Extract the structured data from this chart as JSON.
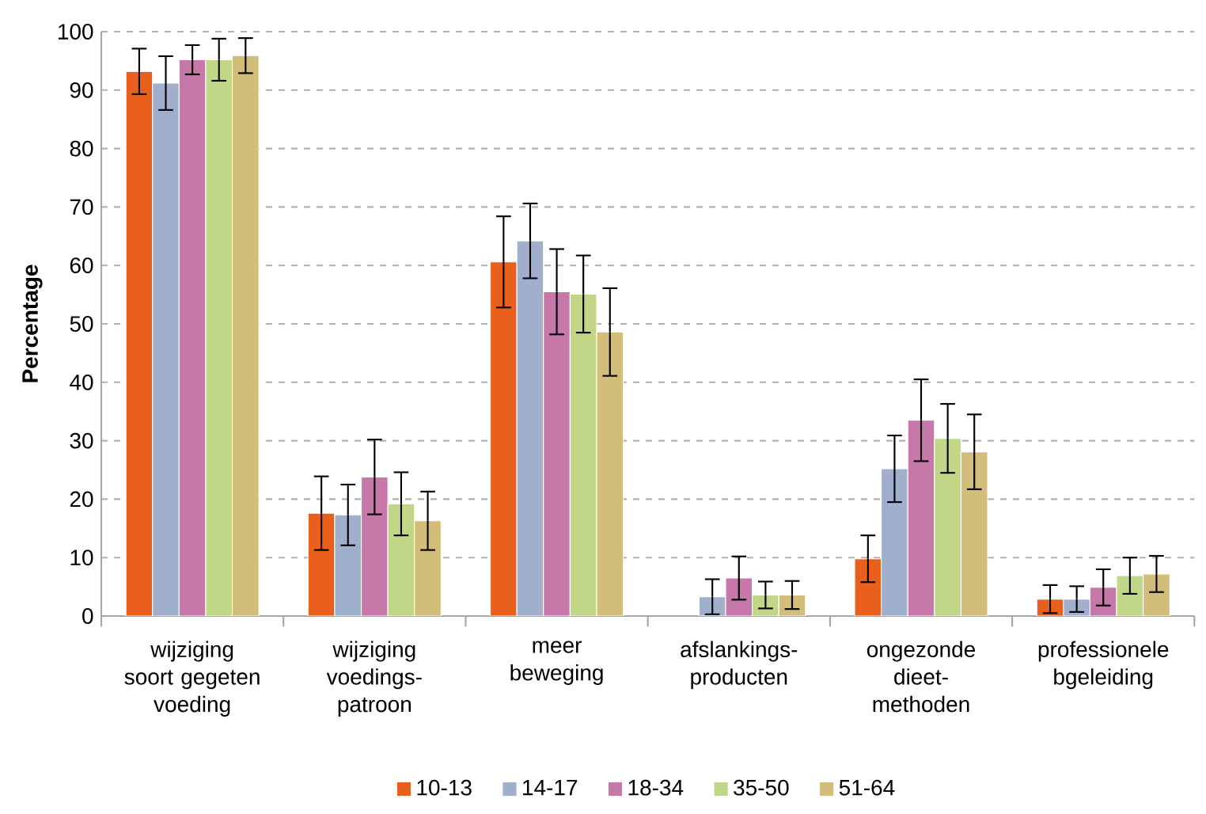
{
  "chart_data": {
    "type": "bar",
    "ylabel": "Percentage",
    "categories": [
      "wijziging soort gegeten voeding",
      "wijziging voedings-patroon",
      "meer beweging",
      "afslankings-producten",
      "ongezonde dieet-methoden",
      "professionele bgeleiding"
    ],
    "series": [
      {
        "name": "10-13",
        "color": "#e8601c",
        "values": [
          93.2,
          17.6,
          60.6,
          null,
          9.8,
          2.9
        ],
        "errors": [
          3.9,
          6.3,
          7.8,
          null,
          4.0,
          2.4
        ]
      },
      {
        "name": "14-17",
        "color": "#a0b0cc",
        "values": [
          91.2,
          17.3,
          64.2,
          3.3,
          25.2,
          2.9
        ],
        "errors": [
          4.6,
          5.2,
          6.4,
          3.0,
          5.7,
          2.2
        ]
      },
      {
        "name": "18-34",
        "color": "#c678a8",
        "values": [
          95.2,
          23.8,
          55.5,
          6.5,
          33.5,
          4.9
        ],
        "errors": [
          2.5,
          6.4,
          7.3,
          3.7,
          7.0,
          3.1
        ]
      },
      {
        "name": "35-50",
        "color": "#c1d787",
        "values": [
          95.2,
          19.2,
          55.1,
          3.6,
          30.4,
          6.9
        ],
        "errors": [
          3.6,
          5.4,
          6.6,
          2.3,
          5.9,
          3.1
        ]
      },
      {
        "name": "51-64",
        "color": "#d2bd7a",
        "values": [
          95.9,
          16.3,
          48.6,
          3.6,
          28.1,
          7.2
        ],
        "errors": [
          3.0,
          5.0,
          7.5,
          2.4,
          6.4,
          3.1
        ]
      }
    ],
    "ylim": [
      0,
      100
    ],
    "yticks": [
      0,
      10,
      20,
      30,
      40,
      50,
      60,
      70,
      80,
      90,
      100
    ],
    "grid": "y",
    "legend": "bottom"
  }
}
